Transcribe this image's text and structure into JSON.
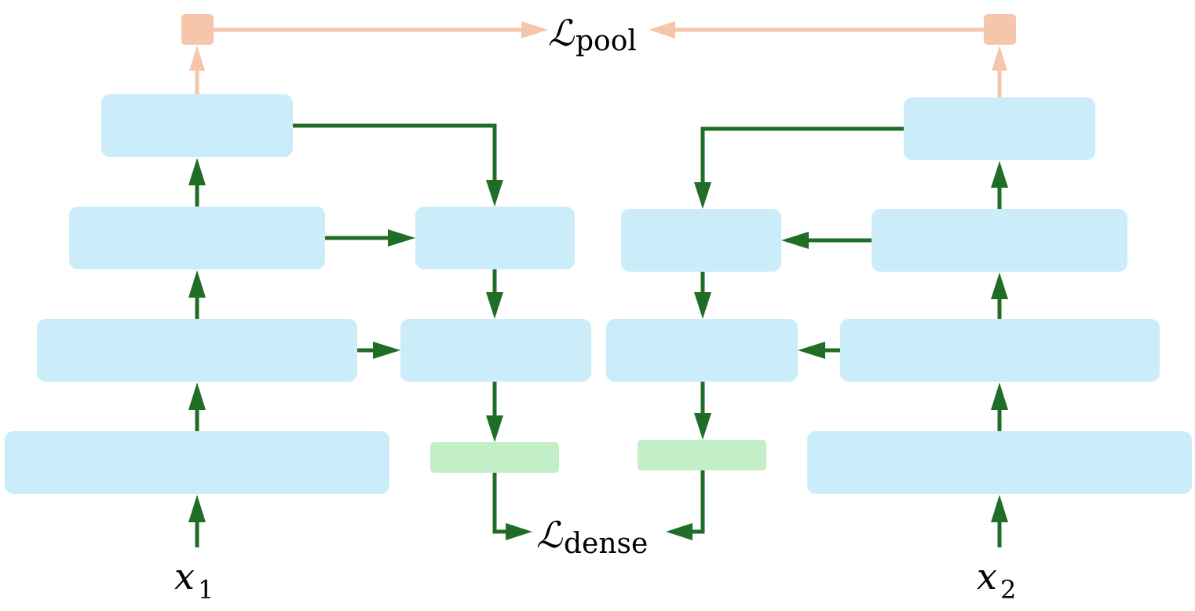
{
  "labels": {
    "loss_pool_symbol": "ℒ",
    "loss_pool_subscript": "pool",
    "loss_dense_symbol": "ℒ",
    "loss_dense_subscript": "dense",
    "input_1_symbol": "x",
    "input_1_subscript": "1",
    "input_2_symbol": "x",
    "input_2_subscript": "2"
  },
  "colors": {
    "encoder_block": "#cbedfa",
    "projection_block": "#c2efc8",
    "pool_node": "#f6c6ab",
    "dense_arrow": "#1f6d27",
    "pool_arrow": "#f6c6ab"
  }
}
